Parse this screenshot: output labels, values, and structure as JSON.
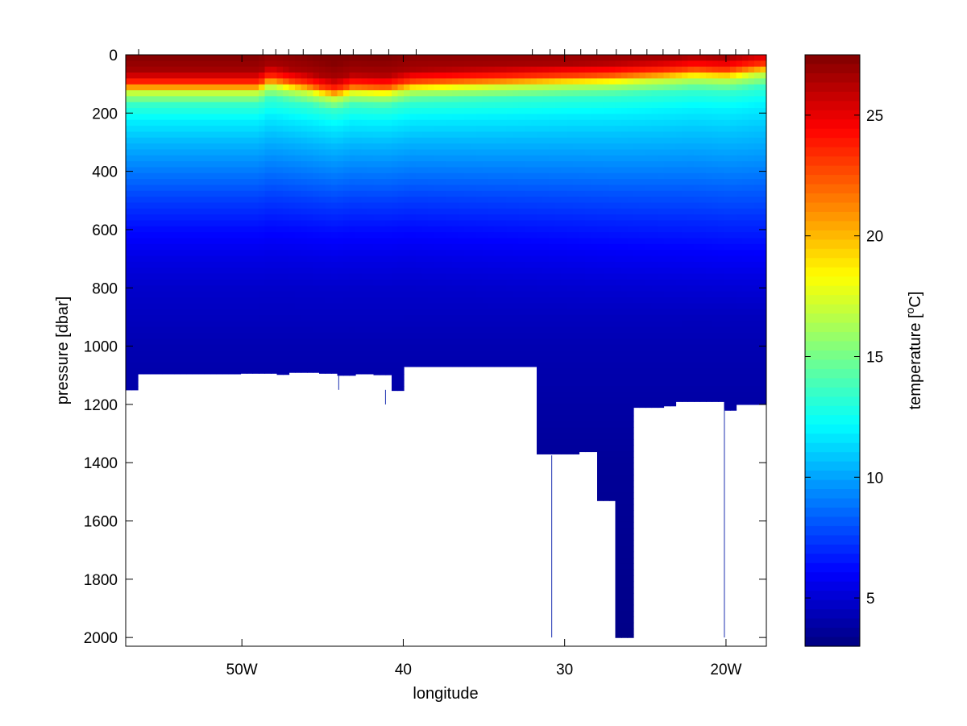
{
  "chart_data": {
    "type": "heatmap",
    "title": "",
    "xlabel": "longitude",
    "ylabel": "pressure [dbar]",
    "x_units": "degrees longitude (negative = West)",
    "xlim": [
      -57.2,
      -17.5
    ],
    "ylim": [
      2030,
      0
    ],
    "y_reversed": true,
    "xticks": [
      {
        "value": -50,
        "label": "50W"
      },
      {
        "value": -40,
        "label": "40"
      },
      {
        "value": -30,
        "label": "30"
      },
      {
        "value": -20,
        "label": "20W"
      }
    ],
    "yticks": [
      {
        "value": 0,
        "label": "0"
      },
      {
        "value": 200,
        "label": "200"
      },
      {
        "value": 400,
        "label": "400"
      },
      {
        "value": 600,
        "label": "600"
      },
      {
        "value": 800,
        "label": "800"
      },
      {
        "value": 1000,
        "label": "1000"
      },
      {
        "value": 1200,
        "label": "1200"
      },
      {
        "value": 1400,
        "label": "1400"
      },
      {
        "value": 1600,
        "label": "1600"
      },
      {
        "value": 1800,
        "label": "1800"
      },
      {
        "value": 2000,
        "label": "2000"
      }
    ],
    "station_longitudes": [
      -56.4,
      -48.7,
      -47.9,
      -47.1,
      -46.2,
      -45.1,
      -43.9,
      -43.1,
      -42.0,
      -40.9,
      -39.2,
      -32.0,
      -30.9,
      -30.0,
      -29.0,
      -28.0,
      -26.8,
      -25.9,
      -24.9,
      -23.9,
      -22.9,
      -21.6,
      -20.4,
      -19.4,
      -18.6
    ],
    "bottom_depth": [
      {
        "x": -57.2,
        "depth": 1150
      },
      {
        "x": -56.6,
        "depth": 1095
      },
      {
        "x": -53.0,
        "depth": 1095
      },
      {
        "x": -50.0,
        "depth": 1093
      },
      {
        "x": -48.0,
        "depth": 1097
      },
      {
        "x": -47.0,
        "depth": 1090
      },
      {
        "x": -45.1,
        "depth": 1093
      },
      {
        "x": -44.0,
        "depth": 1100
      },
      {
        "x": -43.0,
        "depth": 1095
      },
      {
        "x": -42.0,
        "depth": 1098
      },
      {
        "x": -40.9,
        "depth": 1152
      },
      {
        "x": -39.8,
        "depth": 1070
      },
      {
        "x": -36.0,
        "depth": 1070
      },
      {
        "x": -32.0,
        "depth": 1070
      },
      {
        "x": -31.9,
        "depth": 1370
      },
      {
        "x": -30.5,
        "depth": 1370
      },
      {
        "x": -29.0,
        "depth": 1362
      },
      {
        "x": -27.9,
        "depth": 1530
      },
      {
        "x": -26.8,
        "depth": 2000
      },
      {
        "x": -25.9,
        "depth": 1210
      },
      {
        "x": -24.0,
        "depth": 1205
      },
      {
        "x": -23.0,
        "depth": 1190
      },
      {
        "x": -21.0,
        "depth": 1190
      },
      {
        "x": -20.1,
        "depth": 1220
      },
      {
        "x": -19.5,
        "depth": 1200
      },
      {
        "x": -17.5,
        "depth": 1198
      }
    ],
    "temperature_profile_west": [
      {
        "pressure": 0,
        "temperature": 27.5
      },
      {
        "pressure": 60,
        "temperature": 26.5
      },
      {
        "pressure": 100,
        "temperature": 23.0
      },
      {
        "pressure": 130,
        "temperature": 17.0
      },
      {
        "pressure": 170,
        "temperature": 13.5
      },
      {
        "pressure": 230,
        "temperature": 11.8
      },
      {
        "pressure": 300,
        "temperature": 10.5
      },
      {
        "pressure": 400,
        "temperature": 9.0
      },
      {
        "pressure": 500,
        "temperature": 7.5
      },
      {
        "pressure": 600,
        "temperature": 6.3
      },
      {
        "pressure": 700,
        "temperature": 5.4
      },
      {
        "pressure": 800,
        "temperature": 4.8
      },
      {
        "pressure": 1000,
        "temperature": 4.2
      },
      {
        "pressure": 1200,
        "temperature": 3.9
      },
      {
        "pressure": 1400,
        "temperature": 3.6
      },
      {
        "pressure": 2000,
        "temperature": 3.2
      }
    ],
    "mixed_layer_depth": [
      {
        "x": -57.2,
        "depth": 95
      },
      {
        "x": -49.0,
        "depth": 95
      },
      {
        "x": -48.3,
        "depth": 70
      },
      {
        "x": -46.0,
        "depth": 95
      },
      {
        "x": -44.2,
        "depth": 120
      },
      {
        "x": -43.2,
        "depth": 100
      },
      {
        "x": -41.0,
        "depth": 105
      },
      {
        "x": -39.4,
        "depth": 85
      },
      {
        "x": -34.0,
        "depth": 75
      },
      {
        "x": -30.0,
        "depth": 65
      },
      {
        "x": -27.0,
        "depth": 60
      },
      {
        "x": -24.0,
        "depth": 50
      },
      {
        "x": -22.0,
        "depth": 40
      },
      {
        "x": -20.0,
        "depth": 45
      },
      {
        "x": -17.5,
        "depth": 25
      }
    ],
    "colorbar": {
      "label": "temperature [",
      "label_superscript": "o",
      "label_suffix": "C]",
      "range": [
        3,
        27.5
      ],
      "ticks": [
        5,
        10,
        15,
        20,
        25
      ],
      "colormap": "jet"
    }
  }
}
